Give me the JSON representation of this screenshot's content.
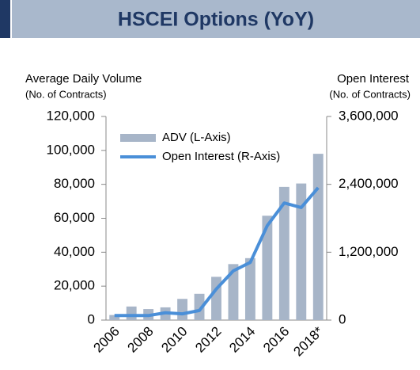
{
  "chart_data": {
    "type": "bar",
    "title": "HSCEI Options (YoY)",
    "y_label": "Average Daily Volume",
    "y_sublabel": "(No. of Contracts)",
    "y2_label": "Open Interest",
    "y2_sublabel": "(No. of Contracts)",
    "categories": [
      "2006",
      null,
      "2008",
      null,
      "2010",
      null,
      "2012",
      null,
      "2014",
      null,
      "2016",
      null,
      "2018*"
    ],
    "series": [
      {
        "name": "ADV (L-Axis)",
        "type": "bar",
        "color": "#a7b5c8",
        "axis": "y",
        "values": [
          3000,
          8000,
          6500,
          7500,
          12500,
          15500,
          25500,
          33000,
          36500,
          61500,
          78500,
          80500,
          98000
        ]
      },
      {
        "name": "Open Interest (R-Axis)",
        "type": "line",
        "color": "#4a8fd8",
        "axis": "y2",
        "values": [
          80000,
          80000,
          80000,
          130000,
          110000,
          170000,
          550000,
          870000,
          1020000,
          1670000,
          2070000,
          1990000,
          2340000
        ]
      }
    ],
    "ylim": [
      0,
      120000
    ],
    "yticks": [
      0,
      {
        "value": 20000,
        "label": "20,000"
      },
      {
        "value": 40000,
        "label": "40,000"
      },
      {
        "value": 60000,
        "label": "60,000"
      },
      {
        "value": 80000,
        "label": "80,000"
      },
      {
        "value": 100000,
        "label": "100,000"
      },
      {
        "value": 120000,
        "label": "120,000"
      }
    ],
    "y2lim": [
      0,
      3600000
    ],
    "y2ticks": [
      0,
      {
        "value": 1200000,
        "label": "1,200,000"
      },
      {
        "value": 2400000,
        "label": "2,400,000"
      },
      {
        "value": 3600000,
        "label": "3,600,000"
      }
    ],
    "grid": false,
    "legend": "top-left"
  }
}
